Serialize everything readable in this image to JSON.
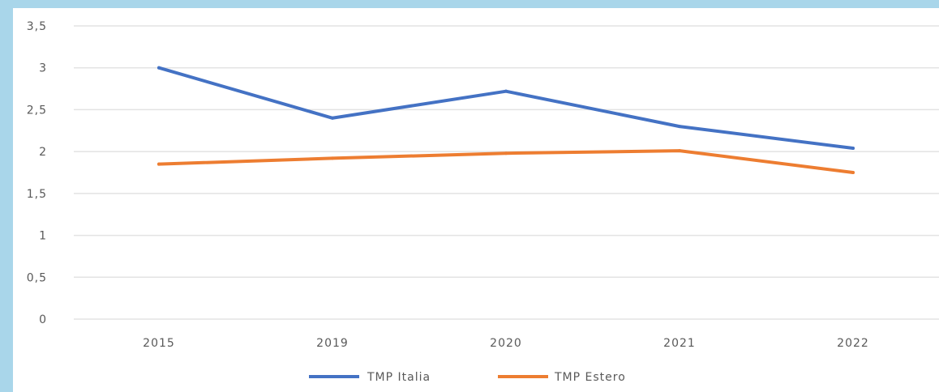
{
  "chart_data": {
    "type": "line",
    "title": "",
    "xlabel": "",
    "ylabel": "",
    "categories": [
      "2015",
      "2019",
      "2020",
      "2021",
      "2022"
    ],
    "ylim": [
      0,
      3.5
    ],
    "yticks": [
      0,
      0.5,
      1,
      1.5,
      2,
      2.5,
      3,
      3.5
    ],
    "ytick_labels": [
      "0",
      "0,5",
      "1",
      "1,5",
      "2",
      "2,5",
      "3",
      "3,5"
    ],
    "grid": true,
    "legend_position": "bottom",
    "series": [
      {
        "name": "TMP Italia",
        "color": "#4472c4",
        "values": [
          3.0,
          2.4,
          2.72,
          2.3,
          2.04
        ]
      },
      {
        "name": "TMP Estero",
        "color": "#ed7d31",
        "values": [
          1.85,
          1.92,
          1.98,
          2.01,
          1.75
        ]
      }
    ]
  }
}
